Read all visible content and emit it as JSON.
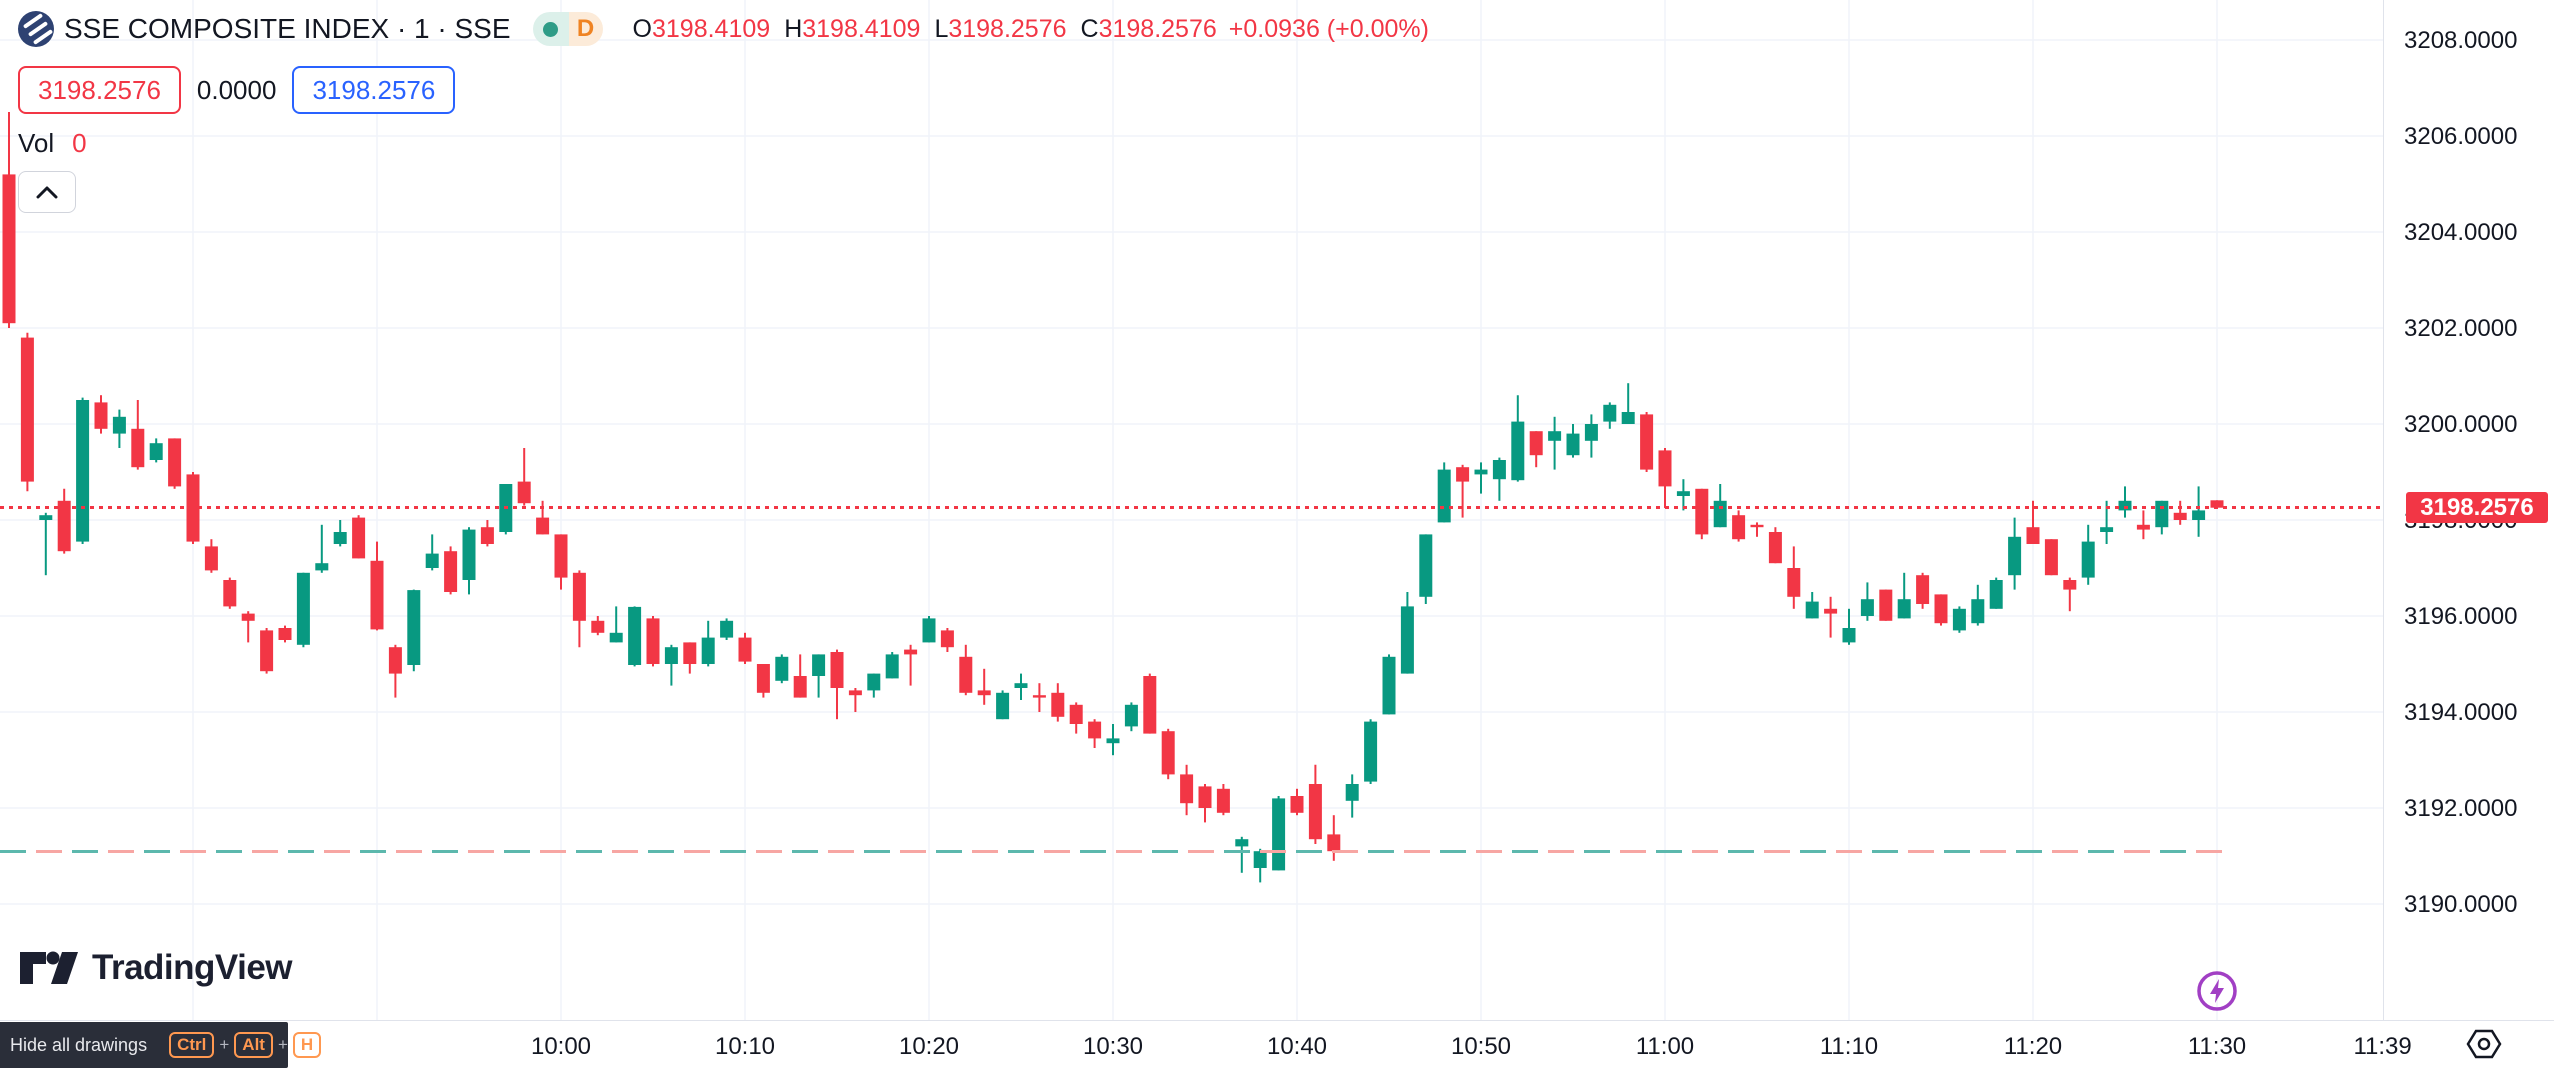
{
  "header": {
    "symbol_title": "SSE COMPOSITE INDEX · 1 · SSE",
    "interval_letter": "D",
    "ohlc": {
      "o_label": "O",
      "o": "3198.4109",
      "h_label": "H",
      "h": "3198.4109",
      "l_label": "L",
      "l": "3198.2576",
      "c_label": "C",
      "c": "3198.2576",
      "change": "+0.0936 (+0.00%)"
    },
    "bid": "3198.2576",
    "spread": "0.0000",
    "ask": "3198.2576",
    "vol_label": "Vol",
    "vol_value": "0"
  },
  "price_axis": {
    "labels": [
      "3208.0000",
      "3206.0000",
      "3204.0000",
      "3202.0000",
      "3200.0000",
      "3198.0000",
      "3196.0000",
      "3194.0000",
      "3192.0000",
      "3190.0000"
    ],
    "badge": "3198.2576"
  },
  "time_axis": {
    "labels": [
      "10:00",
      "10:10",
      "10:20",
      "10:30",
      "10:40",
      "10:50",
      "11:00",
      "11:10",
      "11:20",
      "11:30",
      "11:39"
    ]
  },
  "footer": {
    "logo_text": "TradingView",
    "tooltip_label": "Hide all drawings",
    "key_ctrl": "Ctrl",
    "key_alt": "Alt",
    "key_h": "H",
    "plus": "+"
  },
  "colors": {
    "up": "#089981",
    "down": "#F23645",
    "grid": "#F0F3FA",
    "price_line": "#F23645",
    "badge_bg": "#F23645",
    "low_line_teal": "#5CB8AD",
    "low_line_salmon": "#F7A6A3",
    "accent_blue": "#2962FF",
    "key_orange": "#FF9850",
    "lightning_purple": "#A13FC4"
  },
  "chart_data": {
    "type": "candlestick",
    "title": "SSE COMPOSITE INDEX",
    "interval_minutes": 1,
    "start_time": "09:30",
    "session_open_offset_min": 0,
    "price_line_value": 3198.2576,
    "low_dashed_line_value": 3191.1,
    "ylim": [
      3187.6,
      3208.8
    ],
    "grid": true,
    "candles": [
      [
        3205.2,
        3206.5,
        3202.0,
        3202.1
      ],
      [
        3201.8,
        3201.9,
        3198.6,
        3198.8
      ],
      [
        3198.0,
        3198.15,
        3196.85,
        3198.1
      ],
      [
        3198.4,
        3198.65,
        3197.3,
        3197.35
      ],
      [
        3197.55,
        3200.55,
        3197.5,
        3200.5
      ],
      [
        3200.45,
        3200.6,
        3199.8,
        3199.9
      ],
      [
        3199.8,
        3200.3,
        3199.5,
        3200.15
      ],
      [
        3199.9,
        3200.5,
        3199.05,
        3199.1
      ],
      [
        3199.25,
        3199.7,
        3199.2,
        3199.6
      ],
      [
        3199.7,
        3199.7,
        3198.65,
        3198.7
      ],
      [
        3198.95,
        3199.0,
        3197.5,
        3197.55
      ],
      [
        3197.45,
        3197.6,
        3196.9,
        3196.95
      ],
      [
        3196.75,
        3196.8,
        3196.15,
        3196.2
      ],
      [
        3196.05,
        3196.1,
        3195.45,
        3195.9
      ],
      [
        3195.7,
        3195.75,
        3194.8,
        3194.85
      ],
      [
        3195.75,
        3195.8,
        3195.45,
        3195.5
      ],
      [
        3195.4,
        3196.9,
        3195.35,
        3196.9
      ],
      [
        3196.95,
        3197.9,
        3196.9,
        3197.1
      ],
      [
        3197.5,
        3198.0,
        3197.45,
        3197.75
      ],
      [
        3198.05,
        3198.1,
        3197.2,
        3197.2
      ],
      [
        3197.15,
        3197.55,
        3195.7,
        3195.72
      ],
      [
        3195.35,
        3195.4,
        3194.3,
        3194.8
      ],
      [
        3194.98,
        3196.55,
        3194.85,
        3196.54
      ],
      [
        3197.0,
        3197.7,
        3196.95,
        3197.3
      ],
      [
        3197.35,
        3197.45,
        3196.45,
        3196.5
      ],
      [
        3196.75,
        3197.85,
        3196.45,
        3197.8
      ],
      [
        3197.85,
        3198.0,
        3197.45,
        3197.5
      ],
      [
        3197.75,
        3198.75,
        3197.7,
        3198.75
      ],
      [
        3198.8,
        3199.5,
        3198.3,
        3198.35
      ],
      [
        3198.05,
        3198.4,
        3197.7,
        3197.7
      ],
      [
        3197.7,
        3197.7,
        3196.55,
        3196.8
      ],
      [
        3196.9,
        3196.95,
        3195.35,
        3195.9
      ],
      [
        3195.9,
        3196.0,
        3195.6,
        3195.65
      ],
      [
        3195.45,
        3196.2,
        3195.45,
        3195.65
      ],
      [
        3194.98,
        3196.2,
        3194.95,
        3196.19
      ],
      [
        3195.95,
        3196.0,
        3194.95,
        3195.0
      ],
      [
        3195.0,
        3195.4,
        3194.55,
        3195.35
      ],
      [
        3195.45,
        3195.45,
        3194.8,
        3195.0
      ],
      [
        3195.0,
        3195.9,
        3194.95,
        3195.55
      ],
      [
        3195.55,
        3195.95,
        3195.5,
        3195.9
      ],
      [
        3195.55,
        3195.65,
        3195.0,
        3195.05
      ],
      [
        3195.0,
        3195.0,
        3194.3,
        3194.4
      ],
      [
        3194.65,
        3195.2,
        3194.6,
        3195.15
      ],
      [
        3194.75,
        3195.2,
        3194.3,
        3194.3
      ],
      [
        3194.75,
        3195.2,
        3194.3,
        3195.2
      ],
      [
        3195.25,
        3195.3,
        3193.85,
        3194.5
      ],
      [
        3194.45,
        3194.5,
        3194.0,
        3194.35
      ],
      [
        3194.45,
        3194.8,
        3194.3,
        3194.8
      ],
      [
        3194.7,
        3195.25,
        3194.7,
        3195.2
      ],
      [
        3195.3,
        3195.4,
        3194.55,
        3195.2
      ],
      [
        3195.45,
        3196.0,
        3195.45,
        3195.95
      ],
      [
        3195.7,
        3195.75,
        3195.25,
        3195.35
      ],
      [
        3195.15,
        3195.4,
        3194.35,
        3194.4
      ],
      [
        3194.45,
        3194.9,
        3194.15,
        3194.35
      ],
      [
        3193.85,
        3194.45,
        3193.85,
        3194.4
      ],
      [
        3194.5,
        3194.8,
        3194.25,
        3194.6
      ],
      [
        3194.35,
        3194.6,
        3194.0,
        3194.3
      ],
      [
        3194.4,
        3194.6,
        3193.8,
        3193.9
      ],
      [
        3194.15,
        3194.2,
        3193.55,
        3193.75
      ],
      [
        3193.8,
        3193.85,
        3193.25,
        3193.45
      ],
      [
        3193.35,
        3193.75,
        3193.1,
        3193.45
      ],
      [
        3193.7,
        3194.2,
        3193.6,
        3194.15
      ],
      [
        3194.75,
        3194.8,
        3193.55,
        3193.55
      ],
      [
        3193.6,
        3193.65,
        3192.6,
        3192.7
      ],
      [
        3192.7,
        3192.9,
        3191.85,
        3192.1
      ],
      [
        3192.45,
        3192.5,
        3191.7,
        3192.0
      ],
      [
        3192.4,
        3192.5,
        3191.85,
        3191.9
      ],
      [
        3191.2,
        3191.4,
        3190.65,
        3191.35
      ],
      [
        3190.75,
        3191.15,
        3190.45,
        3191.1
      ],
      [
        3190.7,
        3192.25,
        3190.7,
        3192.2
      ],
      [
        3192.25,
        3192.4,
        3191.85,
        3191.9
      ],
      [
        3192.5,
        3192.9,
        3191.25,
        3191.35
      ],
      [
        3191.45,
        3191.85,
        3190.9,
        3191.1
      ],
      [
        3192.15,
        3192.7,
        3191.8,
        3192.5
      ],
      [
        3192.55,
        3193.85,
        3192.5,
        3193.8
      ],
      [
        3193.95,
        3195.2,
        3193.95,
        3195.15
      ],
      [
        3194.8,
        3196.5,
        3194.8,
        3196.2
      ],
      [
        3196.4,
        3197.7,
        3196.25,
        3197.7
      ],
      [
        3197.95,
        3199.2,
        3197.95,
        3199.05
      ],
      [
        3199.1,
        3199.15,
        3198.05,
        3198.8
      ],
      [
        3198.95,
        3199.2,
        3198.55,
        3199.05
      ],
      [
        3198.85,
        3199.3,
        3198.4,
        3199.25
      ],
      [
        3198.83,
        3200.6,
        3198.8,
        3200.05
      ],
      [
        3199.85,
        3199.85,
        3199.1,
        3199.35
      ],
      [
        3199.65,
        3200.15,
        3199.05,
        3199.85
      ],
      [
        3199.35,
        3200.0,
        3199.3,
        3199.8
      ],
      [
        3199.65,
        3200.2,
        3199.3,
        3200.0
      ],
      [
        3200.05,
        3200.45,
        3199.9,
        3200.4
      ],
      [
        3200.0,
        3200.85,
        3200.0,
        3200.25
      ],
      [
        3200.2,
        3200.25,
        3199.0,
        3199.05
      ],
      [
        3199.45,
        3199.5,
        3198.25,
        3198.7
      ],
      [
        3198.5,
        3198.85,
        3198.2,
        3198.6
      ],
      [
        3198.65,
        3198.65,
        3197.6,
        3197.7
      ],
      [
        3197.85,
        3198.75,
        3197.85,
        3198.4
      ],
      [
        3198.1,
        3198.2,
        3197.55,
        3197.6
      ],
      [
        3197.9,
        3197.95,
        3197.65,
        3197.85
      ],
      [
        3197.75,
        3197.85,
        3197.1,
        3197.1
      ],
      [
        3197.0,
        3197.45,
        3196.15,
        3196.4
      ],
      [
        3195.95,
        3196.5,
        3195.95,
        3196.3
      ],
      [
        3196.15,
        3196.4,
        3195.55,
        3196.05
      ],
      [
        3195.45,
        3196.15,
        3195.4,
        3195.75
      ],
      [
        3196.0,
        3196.7,
        3195.9,
        3196.35
      ],
      [
        3196.55,
        3196.55,
        3195.9,
        3195.9
      ],
      [
        3195.95,
        3196.9,
        3195.95,
        3196.35
      ],
      [
        3196.85,
        3196.9,
        3196.15,
        3196.25
      ],
      [
        3196.45,
        3196.45,
        3195.8,
        3195.85
      ],
      [
        3195.7,
        3196.2,
        3195.65,
        3196.15
      ],
      [
        3195.85,
        3196.65,
        3195.8,
        3196.35
      ],
      [
        3196.15,
        3196.8,
        3196.15,
        3196.75
      ],
      [
        3196.85,
        3198.05,
        3196.55,
        3197.65
      ],
      [
        3197.85,
        3198.4,
        3197.5,
        3197.5
      ],
      [
        3197.6,
        3197.6,
        3196.85,
        3196.85
      ],
      [
        3196.75,
        3196.8,
        3196.1,
        3196.55
      ],
      [
        3196.8,
        3197.9,
        3196.65,
        3197.55
      ],
      [
        3197.75,
        3198.4,
        3197.5,
        3197.85
      ],
      [
        3198.2,
        3198.7,
        3198.05,
        3198.4
      ],
      [
        3197.9,
        3198.2,
        3197.6,
        3197.8
      ],
      [
        3197.85,
        3198.4,
        3197.7,
        3198.4
      ],
      [
        3198.15,
        3198.4,
        3197.9,
        3198.0
      ],
      [
        3198.0,
        3198.7,
        3197.65,
        3198.2
      ],
      [
        3198.4109,
        3198.4109,
        3198.2576,
        3198.2576
      ]
    ]
  }
}
